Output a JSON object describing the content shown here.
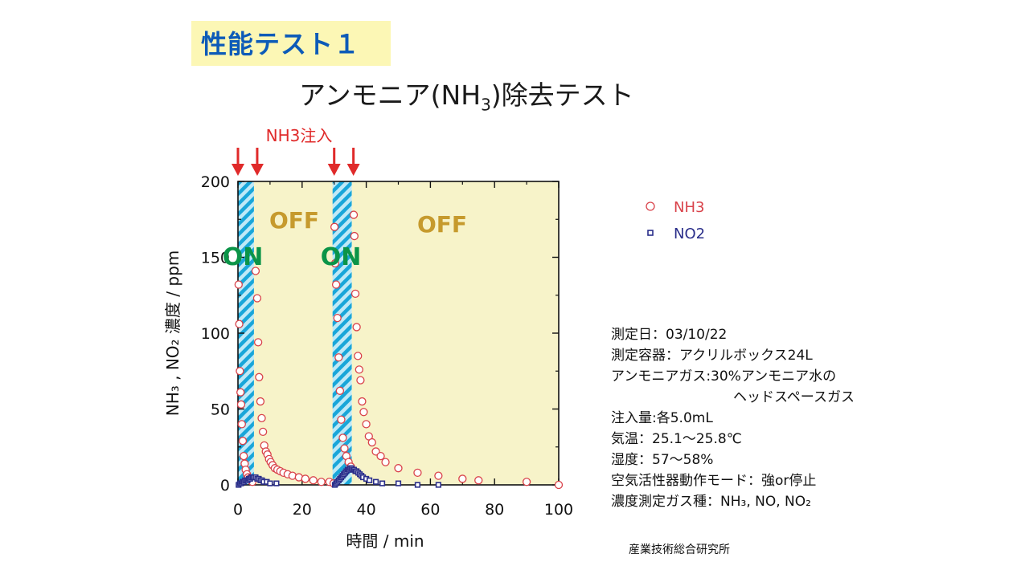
{
  "slide": {
    "badge": "性能テスト１",
    "title_pre": "アンモニア(NH",
    "title_sub": "3",
    "title_post": ")除去テスト"
  },
  "chart_data": {
    "type": "scatter",
    "xlabel": "時間 / min",
    "ylabel": "NH₃ , NO₂ 濃度 / ppm",
    "xlim": [
      0,
      100
    ],
    "ylim": [
      0,
      200
    ],
    "xticks": [
      0,
      20,
      40,
      60,
      80,
      100
    ],
    "yticks": [
      0,
      50,
      100,
      150,
      200
    ],
    "grid": false,
    "legend_position": "top-right (outside plot)",
    "injection_label": "NH3注入",
    "injection_times": [
      0,
      6,
      30,
      36
    ],
    "regions": [
      {
        "label": "ON",
        "start": 0,
        "end": 5,
        "color": "#12a7d8"
      },
      {
        "label": "OFF",
        "start": 5,
        "end": 30,
        "color": "#f7f3c9"
      },
      {
        "label": "ON",
        "start": 29.5,
        "end": 35.5,
        "color": "#12a7d8"
      },
      {
        "label": "OFF",
        "start": 35.5,
        "end": 100,
        "color": "#f7f3c9"
      }
    ],
    "series": [
      {
        "name": "NH3",
        "color": "#d9424a",
        "marker": "circle",
        "x": [
          0.2,
          0.4,
          0.6,
          0.8,
          1,
          1.2,
          1.5,
          1.8,
          2.1,
          2.4,
          2.8,
          3.2,
          3.6,
          4,
          4.5,
          5.5,
          6,
          6.3,
          6.6,
          7,
          7.4,
          7.8,
          8.2,
          8.7,
          9.2,
          9.7,
          10.2,
          10.8,
          11.5,
          12.3,
          13.2,
          14.2,
          15.5,
          17,
          19,
          21,
          23.5,
          26,
          28.5,
          29.8,
          30.1,
          30.3,
          30.6,
          31,
          31.4,
          31.8,
          32.2,
          32.7,
          33.2,
          33.8,
          34.5,
          35.2,
          36.1,
          36.3,
          36.6,
          37,
          37.4,
          37.8,
          38.2,
          38.7,
          39.2,
          40,
          40.8,
          41.8,
          43,
          44.5,
          46,
          50,
          56,
          62.5,
          70,
          75,
          90,
          100
        ],
        "y": [
          132,
          106,
          75,
          61,
          53,
          40,
          29,
          19,
          14,
          10,
          7,
          5,
          4,
          3,
          2,
          141,
          123,
          94,
          71,
          55,
          44,
          35,
          26,
          22,
          20,
          17,
          15,
          13,
          11,
          10,
          9,
          8,
          7,
          6,
          5,
          4,
          3,
          2,
          2,
          1,
          170,
          146,
          132,
          110,
          84,
          62,
          43,
          31,
          24,
          19,
          15,
          12,
          178,
          164,
          126,
          104,
          85,
          76,
          69,
          55,
          48,
          40,
          32,
          28,
          22,
          19,
          15,
          11,
          8,
          6,
          4,
          3,
          2,
          0
        ]
      },
      {
        "name": "NO2",
        "color": "#2a2e8a",
        "marker": "square",
        "x": [
          0.2,
          0.6,
          1,
          1.4,
          1.8,
          2.2,
          2.6,
          3,
          3.4,
          3.8,
          4.2,
          4.6,
          5,
          5.5,
          6,
          6.5,
          7,
          7.5,
          8,
          9,
          10,
          12,
          30.2,
          30.6,
          31,
          31.4,
          31.8,
          32.2,
          32.6,
          33,
          33.4,
          33.8,
          34.2,
          34.6,
          35,
          35.4,
          35.8,
          36.2,
          36.6,
          37,
          37.5,
          38,
          38.5,
          39,
          40,
          41,
          43,
          45,
          50,
          56,
          62.5
        ],
        "y": [
          0,
          1,
          1,
          2,
          2,
          3,
          3,
          3,
          4,
          4,
          5,
          5,
          5,
          5,
          4,
          4,
          3,
          3,
          2,
          2,
          1,
          1,
          0,
          1,
          2,
          3,
          4,
          5,
          6,
          7,
          8,
          9,
          10,
          10,
          11,
          11,
          10,
          10,
          9,
          9,
          8,
          7,
          6,
          5,
          4,
          3,
          2,
          1,
          1,
          0,
          0
        ]
      }
    ]
  },
  "notes": {
    "line1": "測定日：03/10/22",
    "line2": "測定容器：アクリルボックス24L",
    "line3": "アンモニアガス:30%アンモニア水の",
    "line4": "ヘッドスペースガス",
    "line5": "注入量:各5.0mL",
    "line6": "気温：25.1～25.8℃",
    "line7": "湿度：57～58%",
    "line8": "空気活性器動作モード：強or停止",
    "line9": "濃度測定ガス種：NH₃, NO, NO₂"
  },
  "footer": "産業技術総合研究所"
}
